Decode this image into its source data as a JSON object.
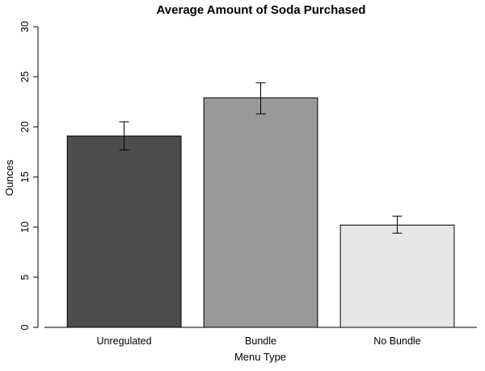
{
  "chart_data": {
    "type": "bar",
    "title": "Average Amount of Soda Purchased",
    "xlabel": "Menu Type",
    "ylabel": "Ounces",
    "categories": [
      "Unregulated",
      "Bundle",
      "No Bundle"
    ],
    "values": [
      19.1,
      22.9,
      10.2
    ],
    "error_low": [
      17.7,
      21.3,
      9.4
    ],
    "error_high": [
      20.5,
      24.4,
      11.1
    ],
    "colors": [
      "#4d4d4d",
      "#999999",
      "#e6e6e6"
    ],
    "ylim": [
      0,
      30
    ],
    "yticks": [
      0,
      5,
      10,
      15,
      20,
      25,
      30
    ],
    "grid": false,
    "legend": "none"
  }
}
